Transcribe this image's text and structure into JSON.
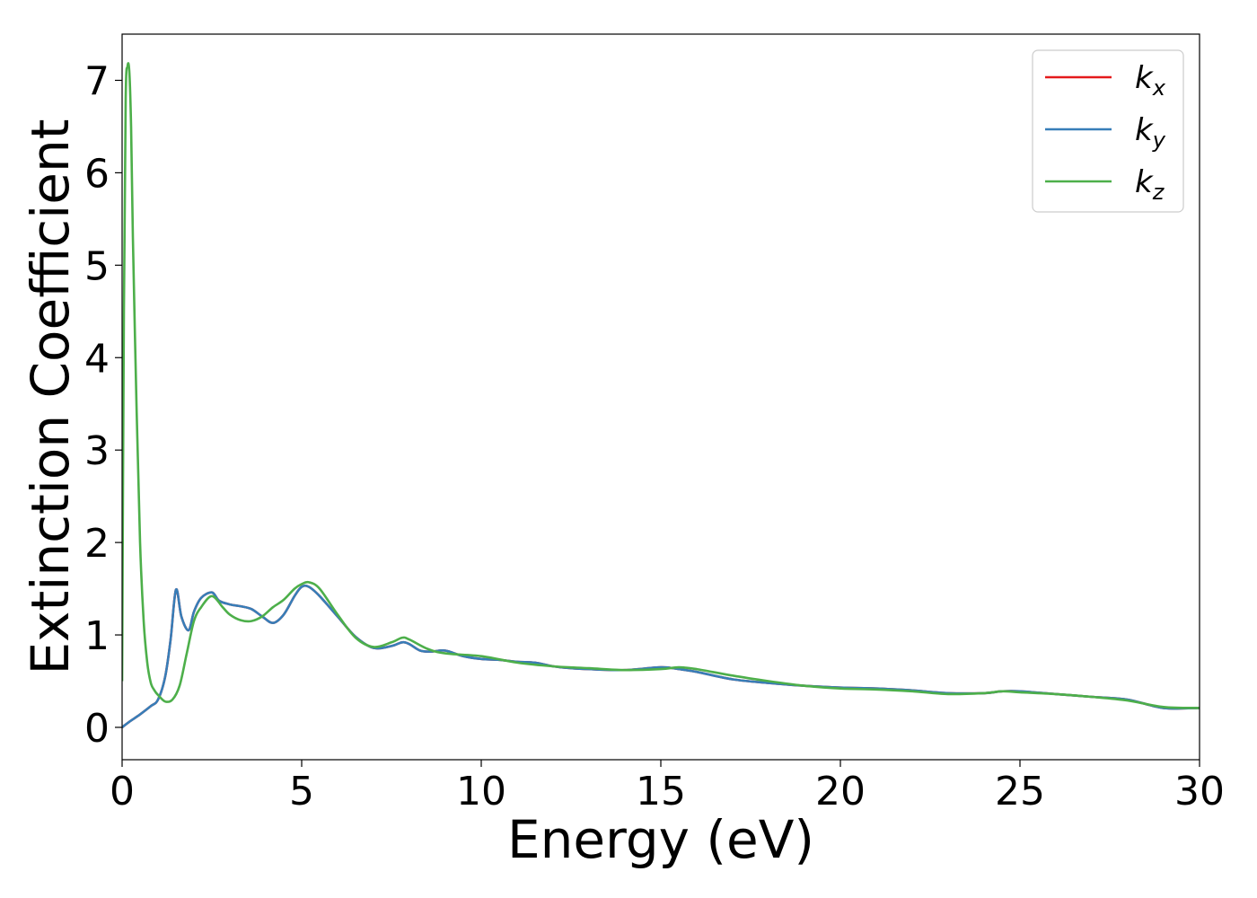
{
  "chart_data": {
    "type": "line",
    "xlabel": "Energy (eV)",
    "ylabel": "Extinction Coefficient",
    "xlim": [
      0,
      30
    ],
    "ylim": [
      -0.35,
      7.5
    ],
    "xticks": [
      0,
      5,
      10,
      15,
      20,
      25,
      30
    ],
    "yticks": [
      0,
      1,
      2,
      3,
      4,
      5,
      6,
      7
    ],
    "legend_position": "top-right",
    "grid": false,
    "series": [
      {
        "name": "k",
        "subscript": "x",
        "color": "#e41a1c",
        "x": [
          0,
          0.2,
          0.5,
          0.8,
          1.0,
          1.2,
          1.35,
          1.5,
          1.65,
          1.85,
          2.0,
          2.2,
          2.5,
          2.7,
          3.0,
          3.3,
          3.6,
          3.9,
          4.2,
          4.5,
          4.8,
          5.0,
          5.2,
          5.5,
          6.0,
          6.5,
          7.0,
          7.5,
          7.8,
          8.0,
          8.3,
          8.6,
          9.0,
          9.5,
          10.0,
          10.5,
          11.0,
          11.5,
          12.0,
          12.5,
          13.0,
          14.0,
          15.0,
          15.5,
          16.0,
          17.0,
          18.0,
          19.0,
          20.0,
          21.0,
          22.0,
          23.0,
          24.0,
          24.5,
          25.0,
          26.0,
          27.0,
          28.0,
          29.0,
          30.0
        ],
        "values": [
          0.0,
          0.06,
          0.14,
          0.23,
          0.3,
          0.55,
          0.95,
          1.49,
          1.2,
          1.05,
          1.25,
          1.4,
          1.46,
          1.37,
          1.33,
          1.31,
          1.28,
          1.2,
          1.13,
          1.22,
          1.42,
          1.52,
          1.52,
          1.42,
          1.2,
          0.98,
          0.86,
          0.88,
          0.92,
          0.9,
          0.83,
          0.82,
          0.83,
          0.77,
          0.74,
          0.73,
          0.71,
          0.7,
          0.66,
          0.64,
          0.63,
          0.62,
          0.65,
          0.63,
          0.6,
          0.52,
          0.48,
          0.45,
          0.43,
          0.42,
          0.4,
          0.37,
          0.37,
          0.39,
          0.39,
          0.36,
          0.33,
          0.3,
          0.21,
          0.21
        ]
      },
      {
        "name": "k",
        "subscript": "y",
        "color": "#377eb8",
        "x": [
          0,
          0.2,
          0.5,
          0.8,
          1.0,
          1.2,
          1.35,
          1.5,
          1.65,
          1.85,
          2.0,
          2.2,
          2.5,
          2.7,
          3.0,
          3.3,
          3.6,
          3.9,
          4.2,
          4.5,
          4.8,
          5.0,
          5.2,
          5.5,
          6.0,
          6.5,
          7.0,
          7.5,
          7.8,
          8.0,
          8.3,
          8.6,
          9.0,
          9.5,
          10.0,
          10.5,
          11.0,
          11.5,
          12.0,
          12.5,
          13.0,
          14.0,
          15.0,
          15.5,
          16.0,
          17.0,
          18.0,
          19.0,
          20.0,
          21.0,
          22.0,
          23.0,
          24.0,
          24.5,
          25.0,
          26.0,
          27.0,
          28.0,
          29.0,
          30.0
        ],
        "values": [
          0.0,
          0.06,
          0.14,
          0.23,
          0.3,
          0.55,
          0.95,
          1.49,
          1.2,
          1.05,
          1.25,
          1.4,
          1.46,
          1.37,
          1.33,
          1.31,
          1.28,
          1.2,
          1.13,
          1.22,
          1.42,
          1.52,
          1.52,
          1.42,
          1.2,
          0.98,
          0.86,
          0.88,
          0.92,
          0.9,
          0.83,
          0.82,
          0.83,
          0.77,
          0.74,
          0.73,
          0.71,
          0.7,
          0.66,
          0.64,
          0.63,
          0.62,
          0.65,
          0.63,
          0.6,
          0.52,
          0.48,
          0.45,
          0.43,
          0.42,
          0.4,
          0.37,
          0.37,
          0.39,
          0.39,
          0.36,
          0.33,
          0.3,
          0.21,
          0.21
        ]
      },
      {
        "name": "k",
        "subscript": "z",
        "color": "#4daf4a",
        "x": [
          0,
          0.05,
          0.1,
          0.15,
          0.2,
          0.25,
          0.3,
          0.4,
          0.5,
          0.6,
          0.7,
          0.8,
          0.9,
          1.0,
          1.2,
          1.4,
          1.6,
          1.8,
          2.0,
          2.2,
          2.5,
          2.8,
          3.0,
          3.3,
          3.6,
          3.9,
          4.2,
          4.5,
          4.8,
          5.0,
          5.2,
          5.5,
          6.0,
          6.5,
          7.0,
          7.5,
          7.8,
          8.0,
          8.5,
          9.0,
          10.0,
          11.0,
          12.0,
          13.0,
          14.0,
          15.0,
          15.5,
          16.0,
          17.0,
          18.0,
          19.0,
          20.0,
          21.0,
          22.0,
          23.0,
          24.0,
          24.5,
          25.0,
          26.0,
          27.0,
          28.0,
          29.0,
          30.0
        ],
        "values": [
          0.5,
          4.5,
          6.8,
          7.15,
          7.1,
          6.5,
          5.3,
          3.5,
          2.0,
          1.15,
          0.7,
          0.48,
          0.4,
          0.35,
          0.28,
          0.3,
          0.45,
          0.8,
          1.15,
          1.3,
          1.42,
          1.3,
          1.22,
          1.16,
          1.15,
          1.2,
          1.3,
          1.38,
          1.5,
          1.55,
          1.57,
          1.5,
          1.22,
          0.97,
          0.87,
          0.92,
          0.97,
          0.95,
          0.85,
          0.8,
          0.77,
          0.7,
          0.66,
          0.64,
          0.62,
          0.63,
          0.65,
          0.63,
          0.56,
          0.5,
          0.45,
          0.42,
          0.41,
          0.39,
          0.36,
          0.37,
          0.39,
          0.38,
          0.36,
          0.33,
          0.29,
          0.22,
          0.21
        ]
      }
    ]
  }
}
